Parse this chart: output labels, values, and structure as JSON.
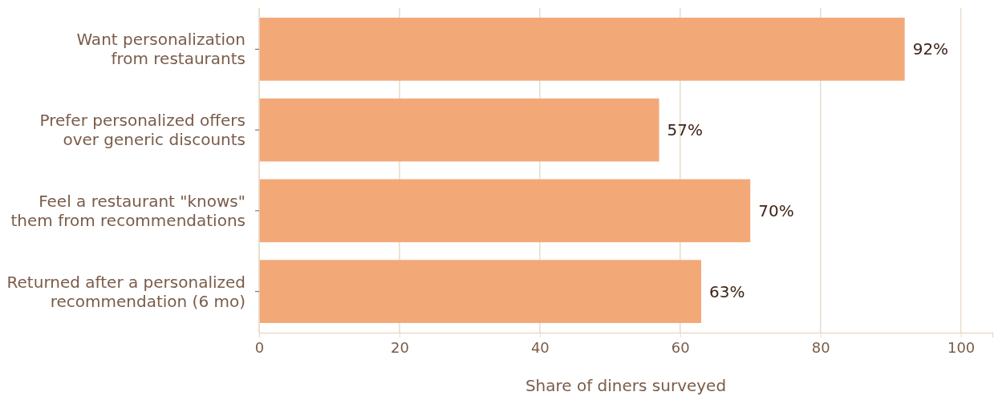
{
  "chart_data": {
    "type": "bar",
    "orientation": "horizontal",
    "xlabel": "Share of diners surveyed",
    "categories": [
      "Want personalization\nfrom restaurants",
      "Prefer personalized offers\nover generic discounts",
      "Feel a restaurant \"knows\"\nthem from recommendations",
      "Returned after a personalized\nrecommendation (6 mo)"
    ],
    "values": [
      92,
      57,
      70,
      63
    ],
    "color": "#f2a877",
    "value_labels": [
      "92%",
      "57%",
      "70%",
      "63%"
    ],
    "xlim": [
      0,
      104.5
    ],
    "xticks": [
      0,
      20,
      40,
      60,
      80,
      100
    ],
    "grid": "x"
  }
}
